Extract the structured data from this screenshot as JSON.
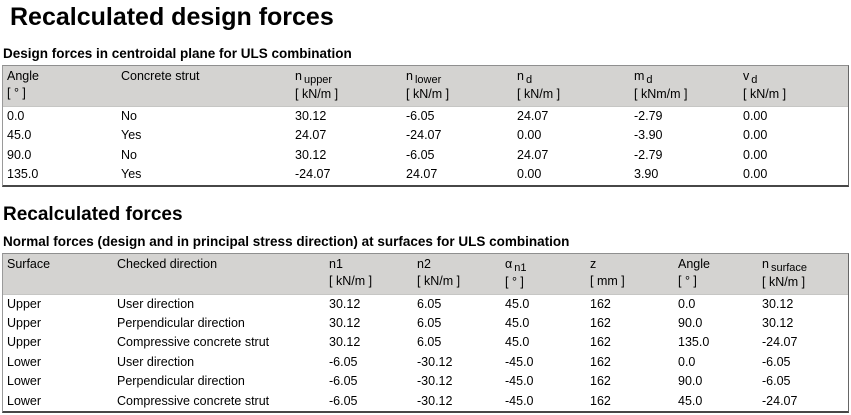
{
  "page": {
    "title": "Recalculated design forces",
    "section2_title": "Recalculated forces"
  },
  "colors": {
    "header_bg": "#d4d3d1",
    "table_border": "#8f8f8f",
    "text": "#000000",
    "page_bg": "#ffffff"
  },
  "table1": {
    "caption": "Design forces in centroidal plane for ULS combination",
    "columns": [
      {
        "name": "Angle",
        "sub": "",
        "unit": "[ ° ]"
      },
      {
        "name": "Concrete strut",
        "sub": "",
        "unit": ""
      },
      {
        "name": "n",
        "sub": "upper",
        "unit": "[ kN/m ]"
      },
      {
        "name": "n",
        "sub": "lower",
        "unit": "[ kN/m ]"
      },
      {
        "name": "n",
        "sub": "d",
        "unit": "[ kN/m ]"
      },
      {
        "name": "m",
        "sub": "d",
        "unit": "[ kNm/m ]"
      },
      {
        "name": "v",
        "sub": "d",
        "unit": "[ kN/m ]"
      }
    ],
    "rows": [
      [
        "0.0",
        "No",
        "30.12",
        "-6.05",
        "24.07",
        "-2.79",
        "0.00"
      ],
      [
        "45.0",
        "Yes",
        "24.07",
        "-24.07",
        "0.00",
        "-3.90",
        "0.00"
      ],
      [
        "90.0",
        "No",
        "30.12",
        "-6.05",
        "24.07",
        "-2.79",
        "0.00"
      ],
      [
        "135.0",
        "Yes",
        "-24.07",
        "24.07",
        "0.00",
        "3.90",
        "0.00"
      ]
    ]
  },
  "table2": {
    "caption": "Normal forces (design and in principal stress direction) at surfaces for ULS combination",
    "columns": [
      {
        "name": "Surface",
        "sub": "",
        "unit": ""
      },
      {
        "name": "Checked direction",
        "sub": "",
        "unit": ""
      },
      {
        "name": "n1",
        "sub": "",
        "unit": "[ kN/m ]"
      },
      {
        "name": "n2",
        "sub": "",
        "unit": "[ kN/m ]"
      },
      {
        "name": "α",
        "sub": "n1",
        "unit": "[ ° ]"
      },
      {
        "name": "z",
        "sub": "",
        "unit": "[ mm ]"
      },
      {
        "name": "Angle",
        "sub": "",
        "unit": "[ ° ]"
      },
      {
        "name": "n",
        "sub": "surface",
        "unit": "[ kN/m ]"
      }
    ],
    "rows": [
      [
        "Upper",
        "User direction",
        "30.12",
        "6.05",
        "45.0",
        "162",
        "0.0",
        "30.12"
      ],
      [
        "Upper",
        "Perpendicular direction",
        "30.12",
        "6.05",
        "45.0",
        "162",
        "90.0",
        "30.12"
      ],
      [
        "Upper",
        "Compressive concrete strut",
        "30.12",
        "6.05",
        "45.0",
        "162",
        "135.0",
        "-24.07"
      ],
      [
        "Lower",
        "User direction",
        "-6.05",
        "-30.12",
        "-45.0",
        "162",
        "0.0",
        "-6.05"
      ],
      [
        "Lower",
        "Perpendicular direction",
        "-6.05",
        "-30.12",
        "-45.0",
        "162",
        "90.0",
        "-6.05"
      ],
      [
        "Lower",
        "Compressive concrete strut",
        "-6.05",
        "-30.12",
        "-45.0",
        "162",
        "45.0",
        "-24.07"
      ]
    ]
  }
}
